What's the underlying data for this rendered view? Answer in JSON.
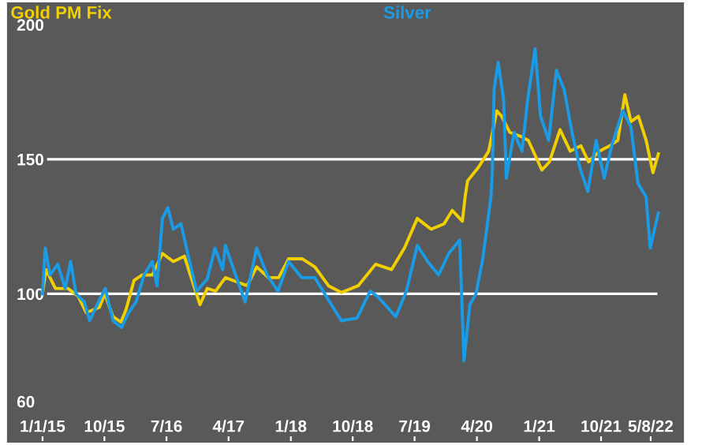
{
  "chart_data": {
    "type": "line",
    "series": [
      {
        "name": "Gold PM Fix",
        "color": "#f2d000",
        "x": [
          "2015-01-01",
          "2015-01-16",
          "2015-02-27",
          "2015-04-23",
          "2015-06-08",
          "2015-07-13",
          "2015-09-09",
          "2015-10-03",
          "2015-11-08",
          "2015-12-13",
          "2016-01-04",
          "2016-02-09",
          "2016-03-15",
          "2016-04-29",
          "2016-06-13",
          "2016-07-31",
          "2016-09-18",
          "2016-10-20",
          "2016-11-26",
          "2016-12-28",
          "2017-02-03",
          "2017-03-18",
          "2017-05-05",
          "2017-06-22",
          "2017-08-03",
          "2017-09-24",
          "2017-11-08",
          "2017-12-22",
          "2018-02-21",
          "2018-04-17",
          "2018-06-16",
          "2018-08-12",
          "2018-10-25",
          "2019-01-10",
          "2019-03-21",
          "2019-05-17",
          "2019-07-13",
          "2019-09-12",
          "2019-11-08",
          "2019-12-14",
          "2020-01-28",
          "2020-02-09",
          "2020-02-20",
          "2020-04-08",
          "2020-05-23",
          "2020-06-28",
          "2020-07-19",
          "2020-08-24",
          "2020-10-11",
          "2020-11-14",
          "2021-01-13",
          "2021-02-15",
          "2021-04-03",
          "2021-05-18",
          "2021-07-04",
          "2021-08-07",
          "2021-09-24",
          "2021-11-08",
          "2021-12-14",
          "2022-01-14",
          "2022-02-10",
          "2022-03-15",
          "2022-04-18",
          "2022-05-18",
          "2022-06-11"
        ],
        "values": [
          100,
          109,
          102,
          102,
          99,
          93,
          95,
          100,
          91.5,
          89.5,
          94,
          105,
          107,
          107,
          115,
          112,
          114,
          105.5,
          96,
          102,
          101,
          106,
          104.5,
          103,
          110,
          106,
          106,
          113,
          113,
          110,
          103,
          100.5,
          103,
          111,
          109,
          117,
          128,
          124,
          126,
          131,
          127,
          136,
          142,
          147,
          153,
          168,
          166,
          160,
          158.5,
          157,
          146,
          149,
          161,
          153,
          155,
          149,
          153,
          155,
          157,
          174,
          164,
          166,
          157,
          145,
          152
        ]
      },
      {
        "name": "Silver",
        "color": "#1a9be6",
        "x": [
          "2015-01-01",
          "2015-01-13",
          "2015-02-03",
          "2015-03-09",
          "2015-04-11",
          "2015-05-05",
          "2015-05-29",
          "2015-07-04",
          "2015-07-28",
          "2015-08-30",
          "2015-10-05",
          "2015-11-08",
          "2015-12-16",
          "2016-01-16",
          "2016-02-18",
          "2016-03-24",
          "2016-04-29",
          "2016-05-20",
          "2016-06-13",
          "2016-07-07",
          "2016-07-31",
          "2016-09-03",
          "2016-10-08",
          "2016-11-11",
          "2016-12-28",
          "2017-01-31",
          "2017-03-06",
          "2017-03-18",
          "2017-05-02",
          "2017-06-13",
          "2017-08-03",
          "2017-09-18",
          "2017-11-05",
          "2017-12-22",
          "2018-02-18",
          "2018-04-17",
          "2018-06-14",
          "2018-08-12",
          "2018-10-20",
          "2018-12-17",
          "2019-01-19",
          "2019-04-09",
          "2019-05-26",
          "2019-07-13",
          "2019-08-28",
          "2019-10-15",
          "2019-11-29",
          "2020-01-16",
          "2020-02-04",
          "2020-03-01",
          "2020-03-28",
          "2020-04-27",
          "2020-06-02",
          "2020-06-08",
          "2020-06-16",
          "2020-07-04",
          "2020-07-28",
          "2020-08-09",
          "2020-09-12",
          "2020-10-17",
          "2020-11-11",
          "2020-12-14",
          "2021-01-07",
          "2021-02-12",
          "2021-03-18",
          "2021-04-21",
          "2021-05-26",
          "2021-06-29",
          "2021-08-04",
          "2021-09-09",
          "2021-10-15",
          "2021-11-17",
          "2022-01-05",
          "2022-02-10",
          "2022-03-13",
          "2022-04-18",
          "2022-05-06",
          "2022-06-11"
        ],
        "values": [
          100,
          117,
          107,
          111,
          102,
          112,
          100,
          97,
          90,
          96,
          102,
          90,
          87.5,
          93,
          97,
          107,
          112,
          103,
          128,
          132,
          124,
          126,
          113,
          101,
          105.5,
          117,
          109,
          118,
          107,
          97,
          117,
          107,
          101,
          112,
          106,
          106,
          98,
          90,
          91,
          101,
          99,
          91.5,
          101,
          118,
          112,
          107,
          115,
          120,
          75,
          96,
          100,
          113,
          136,
          145,
          176,
          186,
          172,
          143,
          160,
          153,
          172,
          191,
          166,
          157,
          183,
          176,
          160,
          147,
          138,
          157,
          143,
          155,
          168,
          162,
          141,
          136,
          117,
          130
        ]
      }
    ],
    "xlim": [
      "2014-08-01",
      "2022-09-28"
    ],
    "xticks": [
      {
        "value": "2015-01-01",
        "label": "1/1/15"
      },
      {
        "value": "2015-10-01",
        "label": "10/15"
      },
      {
        "value": "2016-07-01",
        "label": "7/16"
      },
      {
        "value": "2017-04-01",
        "label": "4/17"
      },
      {
        "value": "2018-01-01",
        "label": "1/18"
      },
      {
        "value": "2018-10-01",
        "label": "10/18"
      },
      {
        "value": "2019-07-01",
        "label": "7/19"
      },
      {
        "value": "2020-04-01",
        "label": "4/20"
      },
      {
        "value": "2021-01-01",
        "label": "1/21"
      },
      {
        "value": "2021-10-01",
        "label": "10/21"
      },
      {
        "value": "2022-05-08",
        "label": "5/8/22"
      }
    ],
    "ylim": [
      45,
      208
    ],
    "yticks": [
      60,
      100,
      150,
      200
    ],
    "ref_lines": [
      {
        "axis": "y",
        "value": 100,
        "color": "#ffffff"
      },
      {
        "axis": "y",
        "value": 150,
        "color": "#ffffff"
      }
    ],
    "grid": false,
    "legend": "top left",
    "marker": "none",
    "line_style": "solid"
  }
}
